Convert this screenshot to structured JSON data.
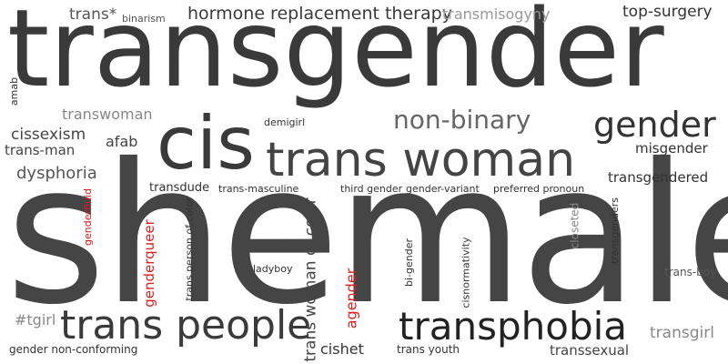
{
  "colors": {
    "dark": "#3a3a3a",
    "mid": "#555555",
    "light": "#888888",
    "accent": "#e11d1d"
  },
  "words": {
    "transgender": "transgender",
    "shemale": "shemale",
    "cis": "cis",
    "trans_woman": "trans woman",
    "trans_people": "trans people",
    "transphobia": "transphobia",
    "gender": "gender",
    "non_binary": "non-binary",
    "hormone_replacement_therapy": "hormone replacement therapy",
    "transmisogyny": "transmisogyny",
    "top_surgery": "top-surgery",
    "trans_star": "trans*",
    "binarism": "binarism",
    "transwoman": "transwoman",
    "cissexism": "cissexism",
    "trans_man": "trans-man",
    "afab": "afab",
    "dysphoria": "dysphoria",
    "misgender": "misgender",
    "transgendered": "transgendered",
    "demigirl": "demigirl",
    "amab": "amab",
    "transdude": "transdude",
    "trans_masculine": "trans-masculine",
    "third_gender": "third gender",
    "gender_variant": "gender-variant",
    "preferred_pronoun": "preferred pronoun",
    "genderfluid": "genderfluid",
    "genderqueer": "genderqueer",
    "trans_person_of_color": "trans person of color",
    "trans_woman_of_color": "trans woman of color",
    "agender": "agender",
    "bi_gender": "bi-gender",
    "cisnormativity": "cisnormativity",
    "closeted": "closeted",
    "transgenders": "transgenders",
    "ladyboy": "ladyboy",
    "trans_boy": "trans-boy",
    "tgirl": "#tgirl",
    "transgirl": "transgirl",
    "transsexual": "transsexual",
    "gender_non_conforming": "gender non-conforming",
    "cishet": "cishet",
    "trans_youth": "trans youth"
  }
}
